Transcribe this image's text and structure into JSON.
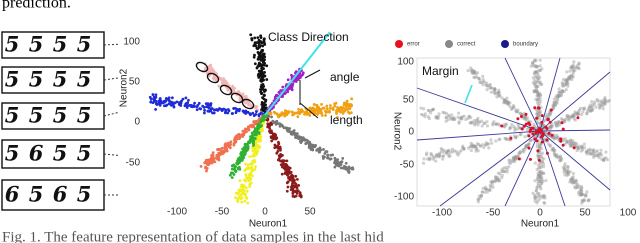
{
  "top_text": "prediction.",
  "digit_rows": [
    [
      "5",
      "5",
      "5",
      "5"
    ],
    [
      "5",
      "5",
      "5",
      "5"
    ],
    [
      "5",
      "5",
      "5",
      "5"
    ],
    [
      "5",
      "6",
      "5",
      "5"
    ],
    [
      "6",
      "5",
      "6",
      "5"
    ]
  ],
  "left_plot": {
    "annotations": [
      "Class Direction",
      "angle",
      "length"
    ],
    "x_label": "Neuron1",
    "y_label": "Neuron2",
    "x_ticks": [
      "-100",
      "-50",
      "0",
      "50"
    ],
    "y_ticks": [
      "100",
      "50",
      "0",
      "-50"
    ]
  },
  "right_plot": {
    "legend": [
      "error",
      "correct",
      "boundary"
    ],
    "annotation": "Margin",
    "x_label": "Neuron1",
    "y_label": "Neuron2",
    "x_ticks": [
      "-100",
      "-50",
      "0",
      "50",
      "100"
    ],
    "y_ticks": [
      "100",
      "50",
      "0",
      "-50",
      "-100"
    ]
  },
  "caption": "Fig. 1.   The feature representation of data samples in the last hid"
}
